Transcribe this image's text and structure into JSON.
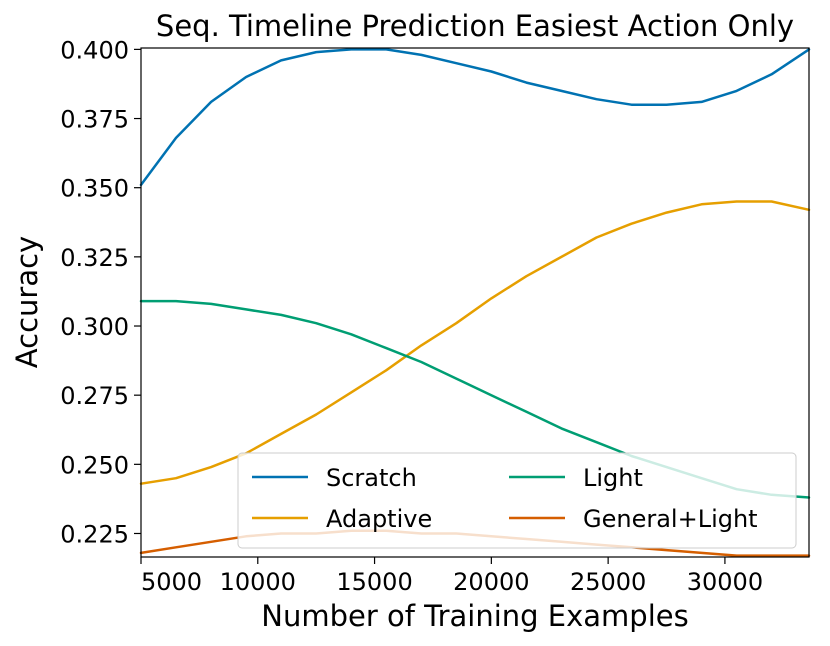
{
  "chart_data": {
    "type": "line",
    "title": "Seq. Timeline Prediction Easiest Action Only",
    "xlabel": "Number of Training Examples",
    "ylabel": "Accuracy",
    "xlim": [
      5000,
      33600
    ],
    "ylim": [
      0.2165,
      0.4005
    ],
    "xticks": [
      5000,
      10000,
      15000,
      20000,
      25000,
      30000
    ],
    "xtick_labels": [
      "5000",
      "10000",
      "15000",
      "20000",
      "25000",
      "30000"
    ],
    "yticks": [
      0.225,
      0.25,
      0.275,
      0.3,
      0.325,
      0.35,
      0.375,
      0.4
    ],
    "ytick_labels": [
      "0.225",
      "0.250",
      "0.275",
      "0.300",
      "0.325",
      "0.350",
      "0.375",
      "0.400"
    ],
    "grid": false,
    "legend": {
      "placement": "lower-right",
      "columns": 2,
      "order": [
        "Scratch",
        "Adaptive",
        "Light",
        "General+Light"
      ]
    },
    "x": [
      5000,
      6500,
      8000,
      9500,
      11000,
      12500,
      14000,
      15500,
      17000,
      18500,
      20000,
      21500,
      23000,
      24500,
      26000,
      27500,
      29000,
      30500,
      32000,
      33600
    ],
    "series": [
      {
        "name": "Scratch",
        "color": "#0072B2",
        "values": [
          0.351,
          0.368,
          0.381,
          0.39,
          0.396,
          0.399,
          0.4,
          0.4,
          0.398,
          0.395,
          0.392,
          0.388,
          0.385,
          0.382,
          0.38,
          0.38,
          0.381,
          0.385,
          0.391,
          0.4
        ]
      },
      {
        "name": "Adaptive",
        "color": "#E69F00",
        "values": [
          0.243,
          0.245,
          0.249,
          0.254,
          0.261,
          0.268,
          0.276,
          0.284,
          0.293,
          0.301,
          0.31,
          0.318,
          0.325,
          0.332,
          0.337,
          0.341,
          0.344,
          0.345,
          0.345,
          0.342
        ]
      },
      {
        "name": "Light",
        "color": "#009E73",
        "values": [
          0.309,
          0.309,
          0.308,
          0.306,
          0.304,
          0.301,
          0.297,
          0.292,
          0.287,
          0.281,
          0.275,
          0.269,
          0.263,
          0.258,
          0.253,
          0.249,
          0.245,
          0.241,
          0.239,
          0.238
        ]
      },
      {
        "name": "General+Light",
        "color": "#D55E00",
        "values": [
          0.218,
          0.22,
          0.222,
          0.224,
          0.225,
          0.225,
          0.226,
          0.226,
          0.225,
          0.225,
          0.224,
          0.223,
          0.222,
          0.221,
          0.22,
          0.219,
          0.218,
          0.217,
          0.217,
          0.217
        ]
      }
    ]
  }
}
